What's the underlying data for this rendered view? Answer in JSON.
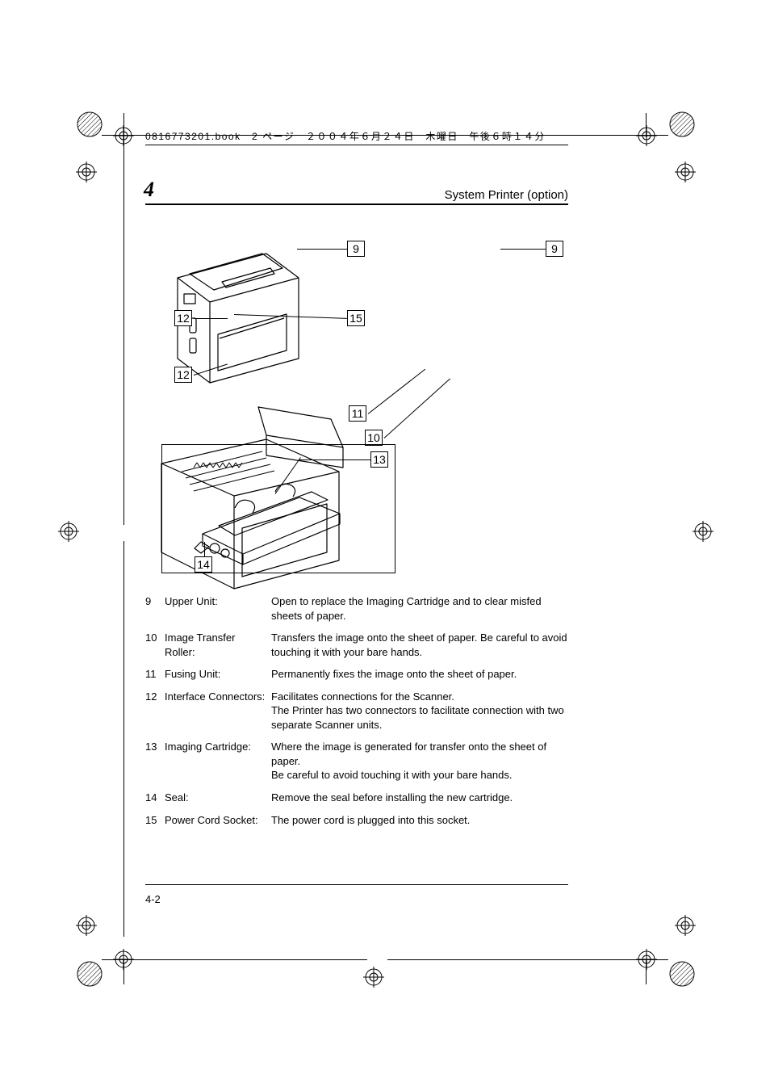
{
  "header": {
    "file_info": "0816773201.book　2 ページ　２００４年６月２４日　木曜日　午後６時１４分",
    "chapter_number": "4",
    "section_title": "System Printer (option)"
  },
  "callouts": {
    "c9a": "9",
    "c9b": "9",
    "c10": "10",
    "c11": "11",
    "c12a": "12",
    "c12b": "12",
    "c13": "13",
    "c14": "14",
    "c15": "15"
  },
  "parts": [
    {
      "num": "9",
      "name": "Upper Unit:",
      "desc": "Open to replace the Imaging Cartridge and to clear misfed sheets of paper."
    },
    {
      "num": "10",
      "name": "Image Transfer Roller:",
      "desc": "Transfers the image onto the sheet of paper. Be careful to avoid touching it with your bare hands."
    },
    {
      "num": "11",
      "name": "Fusing Unit:",
      "desc": "Permanently fixes the image onto the sheet of paper."
    },
    {
      "num": "12",
      "name": "Interface Connectors:",
      "desc": "Facilitates connections for the Scanner.\nThe Printer has two connectors to facilitate connection with two separate Scanner units."
    },
    {
      "num": "13",
      "name": "Imaging Cartridge:",
      "desc": "Where the image is generated for transfer onto the sheet of paper.\nBe careful to avoid touching it with your bare hands."
    },
    {
      "num": "14",
      "name": "Seal:",
      "desc": "Remove the seal before installing the new cartridge."
    },
    {
      "num": "15",
      "name": "Power Cord Socket:",
      "desc": "The power cord is plugged into this socket."
    }
  ],
  "footer": {
    "page": "4-2"
  },
  "style": {
    "text_color": "#000000",
    "line_color": "#000000",
    "background": "#ffffff",
    "body_font_size_pt": 10,
    "header_font_size_pt": 9,
    "chapter_num_font_size_pt": 20
  }
}
